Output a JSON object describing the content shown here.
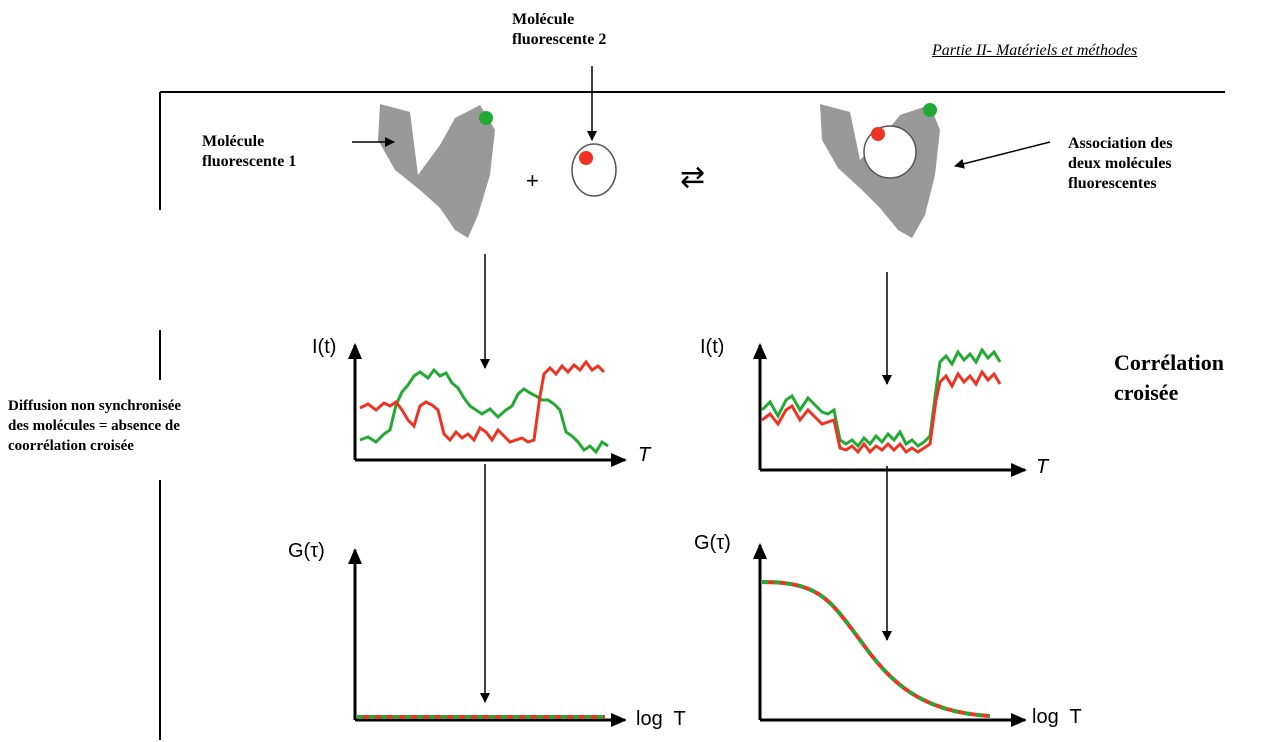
{
  "header": {
    "section_title": "Partie II- Matériels et méthodes"
  },
  "labels": {
    "molecule2": [
      "Molécule",
      "fluorescente  2"
    ],
    "molecule1": [
      "Molécule",
      "fluorescente 1"
    ],
    "association": [
      "Association des",
      "deux molécules",
      "fluorescentes"
    ],
    "plus": "+",
    "equilibrium": "⇄",
    "non_sync": [
      "Diffusion non synchronisée",
      "des molécules =  absence de",
      "coorrélation croisée"
    ],
    "cross_corr": [
      "Corrélation",
      "croisée"
    ]
  },
  "axes": {
    "intensity": "I(t)",
    "time": "T",
    "autocorr": "G(τ)",
    "logtime": "log  T"
  },
  "colors": {
    "molecule_gray": "#999999",
    "green": "#22aa33",
    "red": "#ee3322",
    "black": "#000000"
  }
}
